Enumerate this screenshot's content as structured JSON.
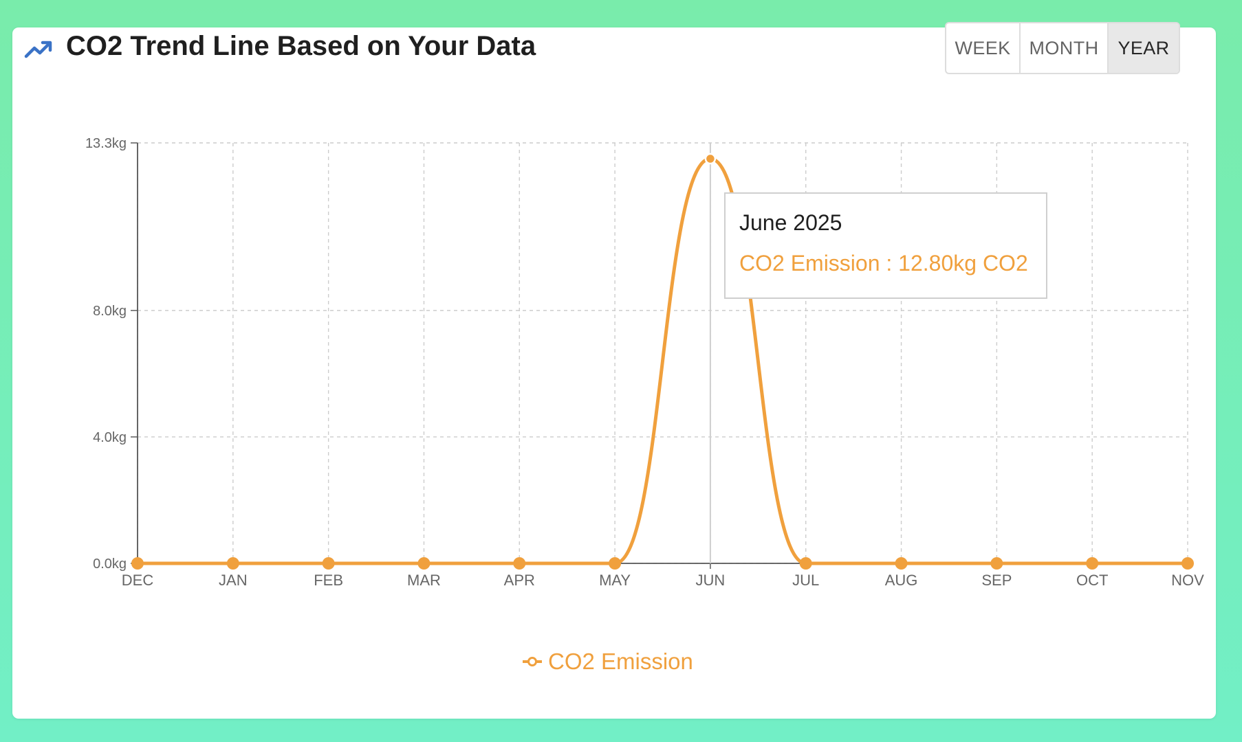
{
  "header": {
    "title": "CO2 Trend Line Based on Your Data",
    "icon": "trending-up-icon",
    "icon_color": "#3a72c6"
  },
  "range_toggle": {
    "week_label": "WEEK",
    "month_label": "MONTH",
    "year_label": "YEAR",
    "selected": "YEAR"
  },
  "tooltip": {
    "title": "June 2025",
    "series_label": "CO2 Emission",
    "value_text": "12.80kg CO2",
    "text": "CO2 Emission : 12.80kg CO2"
  },
  "legend": {
    "label": "CO2 Emission",
    "icon": "line-marker-icon"
  },
  "chart_data": {
    "type": "line",
    "categories": [
      "DEC",
      "JAN",
      "FEB",
      "MAR",
      "APR",
      "MAY",
      "JUN",
      "JUL",
      "AUG",
      "SEP",
      "OCT",
      "NOV"
    ],
    "series": [
      {
        "name": "CO2 Emission",
        "color": "#f0a03d",
        "values": [
          0,
          0,
          0,
          0,
          0,
          0,
          12.8,
          0,
          0,
          0,
          0,
          0
        ]
      }
    ],
    "ylim": [
      0,
      13.3
    ],
    "y_ticks": [
      {
        "value": 0,
        "label": "0.0kg"
      },
      {
        "value": 4,
        "label": "4.0kg"
      },
      {
        "value": 8,
        "label": "8.0kg"
      },
      {
        "value": 13.3,
        "label": "13.3kg"
      }
    ],
    "grid": true,
    "highlighted_index": 6,
    "legend_position": "bottom-center",
    "xlabel": "",
    "ylabel": "",
    "title": ""
  }
}
